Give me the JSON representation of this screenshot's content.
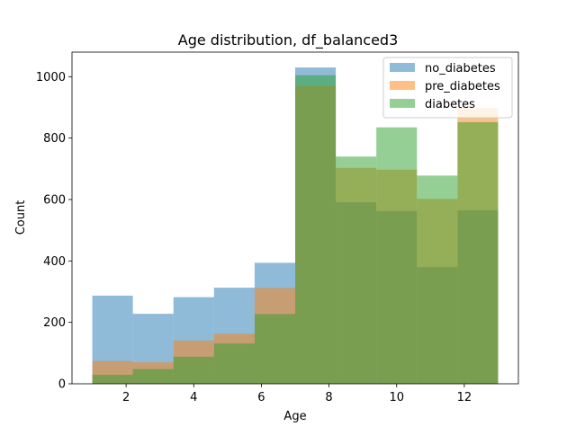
{
  "chart_data": {
    "type": "histogram",
    "title": "Age distribution, df_balanced3",
    "xlabel": "Age",
    "ylabel": "Count",
    "xlim": [
      0.4,
      13.6
    ],
    "ylim": [
      0,
      1080
    ],
    "xticks": [
      2,
      4,
      6,
      8,
      10,
      12
    ],
    "yticks": [
      0,
      200,
      400,
      600,
      800,
      1000
    ],
    "bin_edges": [
      1,
      2.2,
      3.4,
      4.6,
      5.8,
      7,
      8.2,
      9.4,
      10.6,
      11.8,
      13
    ],
    "alpha": 0.5,
    "legend_position": "top-right",
    "series": [
      {
        "name": "no_diabetes",
        "color": "#1f77b4",
        "values": [
          287,
          228,
          282,
          313,
          394,
          1030,
          591,
          562,
          380,
          565
        ]
      },
      {
        "name": "pre_diabetes",
        "color": "#ff7f0e",
        "values": [
          74,
          70,
          141,
          163,
          312,
          970,
          703,
          697,
          602,
          898
        ]
      },
      {
        "name": "diabetes",
        "color": "#2ca02c",
        "values": [
          29,
          48,
          88,
          131,
          227,
          1005,
          740,
          835,
          678,
          852
        ]
      }
    ]
  }
}
